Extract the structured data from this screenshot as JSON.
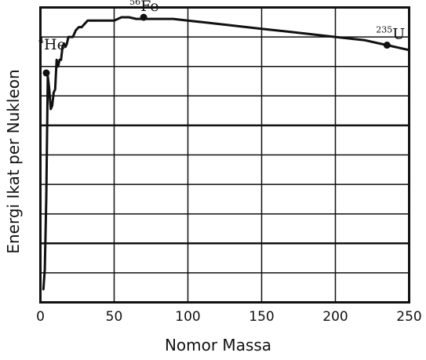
{
  "chart_data": {
    "type": "line",
    "xlabel": "Nomor Massa",
    "ylabel": "Energi Ikat per Nukleon",
    "xlim": [
      0,
      250
    ],
    "ylim": [
      0,
      9
    ],
    "xticks": [
      "0",
      "50",
      "100",
      "150",
      "200",
      "250"
    ],
    "grid": true,
    "series": [
      {
        "x": [
          2,
          3,
          4,
          5,
          6,
          7,
          8,
          9,
          10,
          11,
          12,
          13,
          14,
          15,
          16,
          17,
          18,
          19,
          20,
          22,
          24,
          26,
          28,
          30,
          32,
          35,
          40,
          45,
          50,
          55,
          56,
          60,
          65,
          70,
          80,
          90,
          100,
          110,
          120,
          130,
          140,
          150,
          160,
          170,
          180,
          190,
          200,
          210,
          220,
          230,
          235,
          240,
          250
        ],
        "y": [
          0.4,
          1.0,
          3.2,
          6.9,
          6.5,
          5.9,
          6.0,
          6.4,
          6.5,
          7.4,
          7.2,
          7.4,
          7.4,
          7.8,
          7.9,
          7.8,
          7.9,
          8.1,
          8.1,
          8.1,
          8.3,
          8.4,
          8.4,
          8.5,
          8.6,
          8.6,
          8.6,
          8.6,
          8.6,
          8.7,
          8.7,
          8.7,
          8.65,
          8.65,
          8.65,
          8.65,
          8.6,
          8.55,
          8.5,
          8.45,
          8.4,
          8.35,
          8.3,
          8.25,
          8.2,
          8.15,
          8.1,
          8.05,
          8.0,
          7.9,
          7.85,
          7.8,
          7.7
        ]
      }
    ],
    "annotations": [
      {
        "sup": "4",
        "label": "He",
        "x": 4,
        "y": 7.0
      },
      {
        "sup": "56",
        "label": "Fe",
        "x": 70,
        "y": 8.7
      },
      {
        "sup": "235",
        "label": "U",
        "x": 235,
        "y": 7.85
      }
    ]
  }
}
